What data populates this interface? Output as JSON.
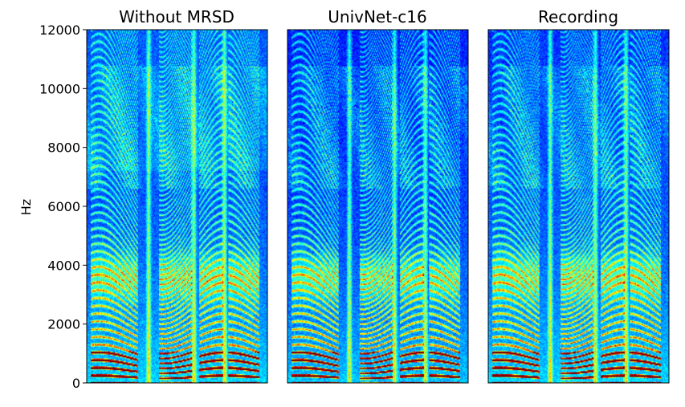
{
  "chart_data": {
    "type": "heatmap",
    "subtype": "spectrogram",
    "colormap": "jet",
    "ylabel": "Hz",
    "ylim": [
      0,
      12000
    ],
    "yticks": [
      0,
      2000,
      4000,
      6000,
      8000,
      10000,
      12000
    ],
    "ytick_labels": [
      "0",
      "2000",
      "4000",
      "6000",
      "8000",
      "10000",
      "12000"
    ],
    "xticks": [],
    "panels": [
      {
        "title": "Without MRSD"
      },
      {
        "title": "UnivNet-c16"
      },
      {
        "title": "Recording"
      }
    ],
    "colors": {
      "jet_low": "#00007f",
      "jet_mid": "#7fff7f",
      "jet_high": "#7f0000"
    }
  }
}
